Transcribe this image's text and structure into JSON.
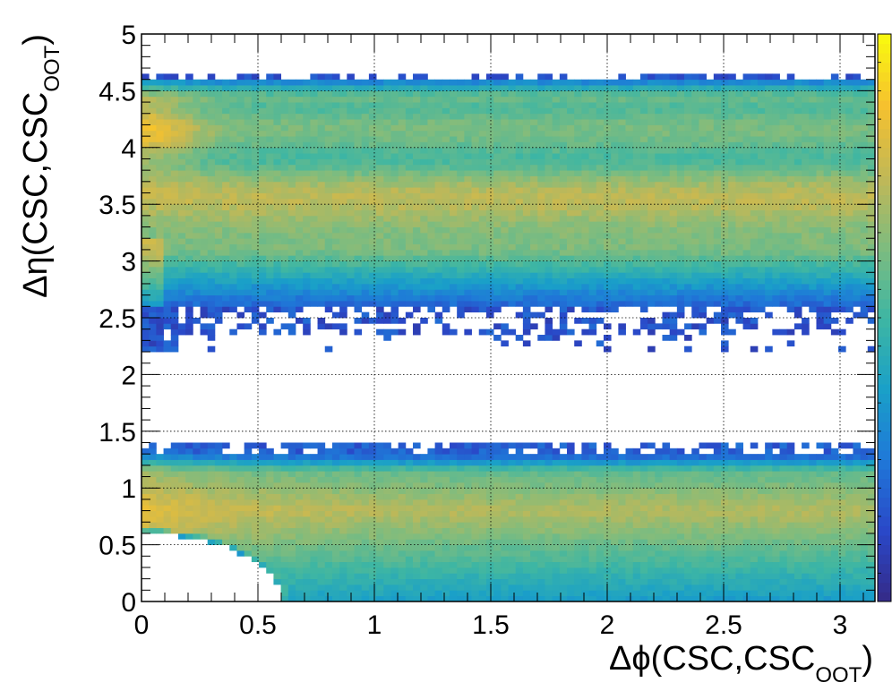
{
  "chart_data": {
    "type": "heatmap",
    "xlabel": {
      "prefix": "Δϕ(CSC,CSC",
      "sub": "OOT",
      "suffix": ")"
    },
    "ylabel": {
      "prefix": "Δη(CSC,CSC",
      "sub": "OOT",
      "suffix": ")"
    },
    "xlim": [
      0,
      3.15
    ],
    "ylim": [
      0,
      5
    ],
    "x_ticks": [
      "0",
      "0.5",
      "1",
      "1.5",
      "2",
      "2.5",
      "3"
    ],
    "x_tick_values": [
      0,
      0.5,
      1,
      1.5,
      2,
      2.5,
      3
    ],
    "y_ticks": [
      "0",
      "0.5",
      "1",
      "1.5",
      "2",
      "2.5",
      "3",
      "3.5",
      "4",
      "4.5",
      "5"
    ],
    "y_tick_values": [
      0,
      0.5,
      1,
      1.5,
      2,
      2.5,
      3,
      3.5,
      4,
      4.5,
      5
    ],
    "grid": true,
    "colorbar": true,
    "colorbar_log": true,
    "bins": {
      "nx": 100,
      "ny": 100
    },
    "palette": [
      "#352a87",
      "#2a48c8",
      "#1f78d8",
      "#1aa0c8",
      "#3eb6a3",
      "#7fbc7e",
      "#c2b856",
      "#f6c12e",
      "#f9fb0e"
    ],
    "bands": [
      {
        "eta_min": 0.0,
        "eta_max": 1.38,
        "density_peak": 0.85,
        "eta_peak": 0.8,
        "sparse_edges": [
          1.3,
          1.38
        ],
        "empty_region": {
          "center_dphi": 0.0,
          "center_deta": 0.0,
          "radius_dphi": 0.6,
          "radius_deta": 0.6
        }
      },
      {
        "eta_min": 2.2,
        "eta_max": 4.65,
        "density_peak": 0.85,
        "eta_peaks": [
          3.55,
          4.15
        ],
        "sparse_edges": [
          2.2,
          2.6,
          4.6,
          4.65
        ]
      }
    ]
  }
}
